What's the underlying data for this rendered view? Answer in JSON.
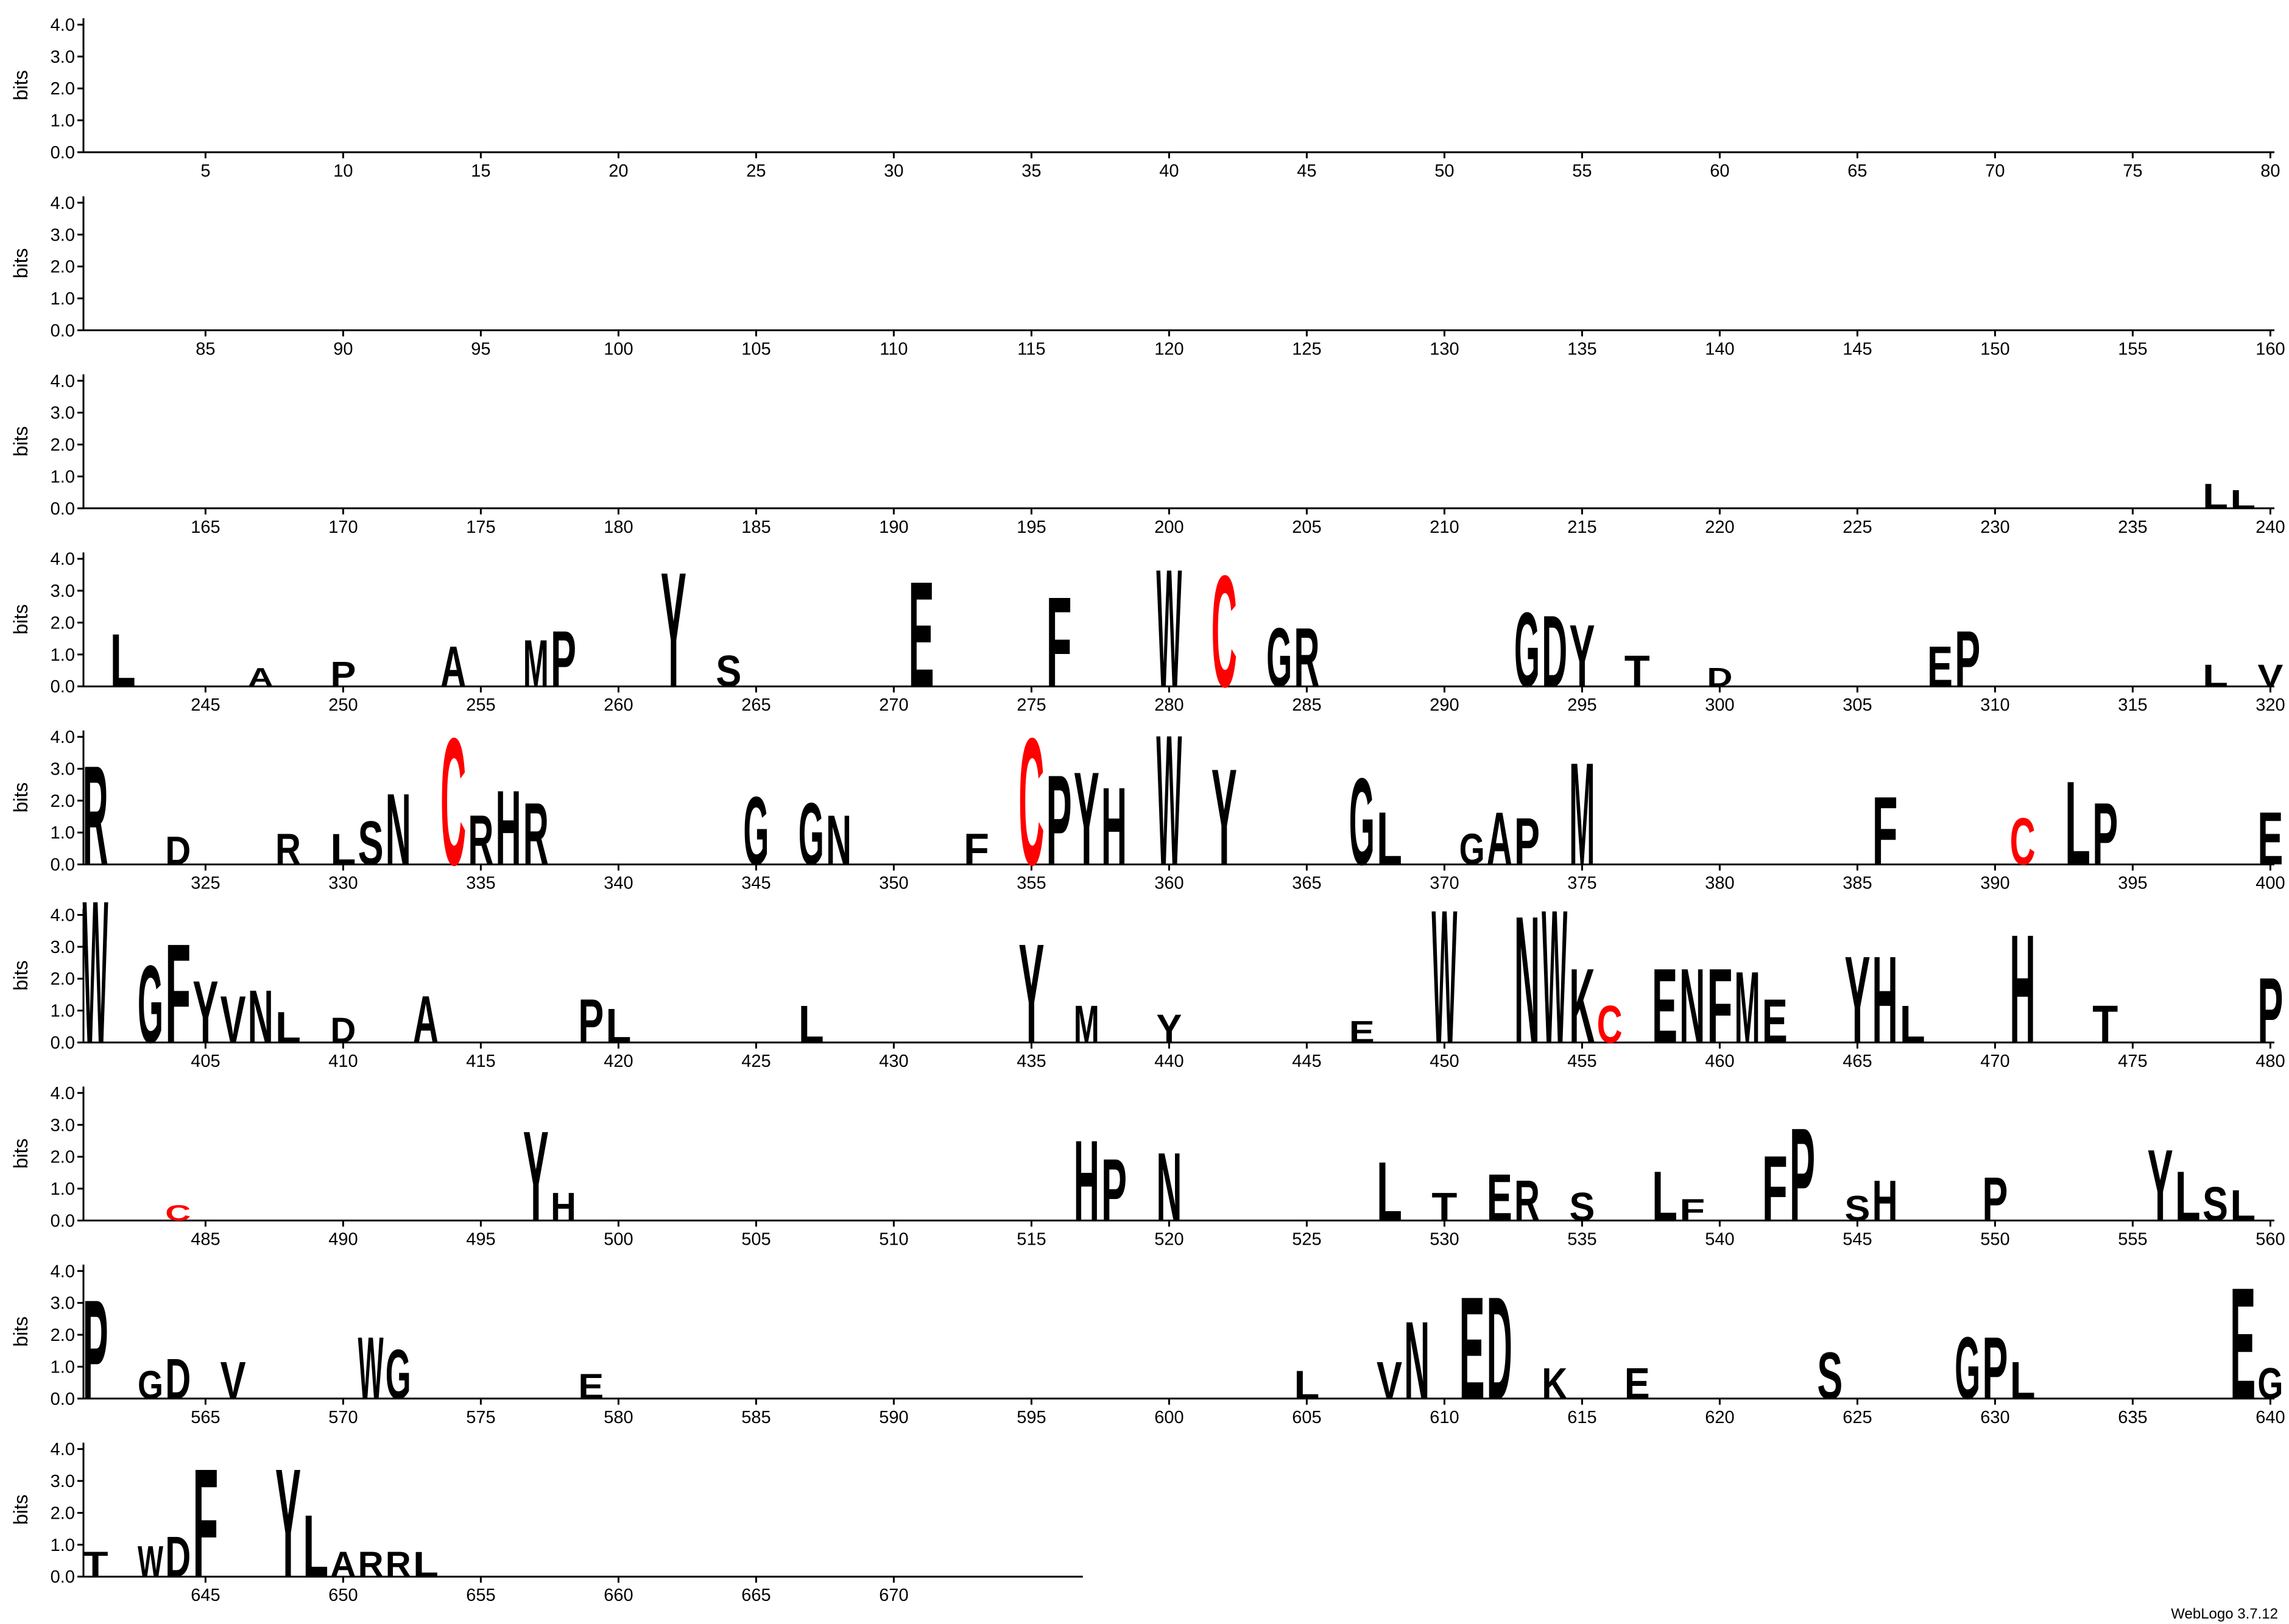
{
  "chart_data": {
    "type": "logo",
    "ylabel": "bits",
    "credit": "WebLogo 3.7.12",
    "ylim": [
      0,
      4.2
    ],
    "yticks": [
      {
        "value": 0,
        "label": "0.0"
      },
      {
        "value": 1,
        "label": "1.0"
      },
      {
        "value": 2,
        "label": "2.0"
      },
      {
        "value": 3,
        "label": "3.0"
      },
      {
        "value": 4,
        "label": "4.0"
      }
    ],
    "colors": {
      "default": "#000000",
      "C": "#ff0000"
    },
    "rows": [
      {
        "xlim": [
          1,
          80
        ],
        "xticks": [
          5,
          10,
          15,
          20,
          25,
          30,
          35,
          40,
          45,
          50,
          55,
          60,
          65,
          70,
          75,
          80
        ],
        "letters": []
      },
      {
        "xlim": [
          81,
          160
        ],
        "xticks": [
          85,
          90,
          95,
          100,
          105,
          110,
          115,
          120,
          125,
          130,
          135,
          140,
          145,
          150,
          155,
          160
        ],
        "letters": []
      },
      {
        "xlim": [
          161,
          240
        ],
        "xticks": [
          165,
          170,
          175,
          180,
          185,
          190,
          195,
          200,
          205,
          210,
          215,
          220,
          225,
          230,
          235,
          240
        ],
        "letters": [
          {
            "pos": 238,
            "letter": "L",
            "bits": 0.8
          },
          {
            "pos": 239,
            "letter": "L",
            "bits": 0.6
          }
        ]
      },
      {
        "xlim": [
          241,
          320
        ],
        "xticks": [
          245,
          250,
          255,
          260,
          265,
          270,
          275,
          280,
          285,
          290,
          295,
          300,
          305,
          310,
          315,
          320
        ],
        "letters": [
          {
            "pos": 242,
            "letter": "L",
            "bits": 1.7
          },
          {
            "pos": 247,
            "letter": "A",
            "bits": 0.6
          },
          {
            "pos": 250,
            "letter": "P",
            "bits": 0.8
          },
          {
            "pos": 254,
            "letter": "A",
            "bits": 1.3
          },
          {
            "pos": 257,
            "letter": "M",
            "bits": 1.5
          },
          {
            "pos": 258,
            "letter": "P",
            "bits": 1.8
          },
          {
            "pos": 262,
            "letter": "Y",
            "bits": 3.7
          },
          {
            "pos": 264,
            "letter": "S",
            "bits": 1.0
          },
          {
            "pos": 271,
            "letter": "E",
            "bits": 3.4
          },
          {
            "pos": 276,
            "letter": "F",
            "bits": 2.9
          },
          {
            "pos": 280,
            "letter": "W",
            "bits": 3.8
          },
          {
            "pos": 282,
            "letter": "C",
            "bits": 3.6
          },
          {
            "pos": 284,
            "letter": "G",
            "bits": 1.9
          },
          {
            "pos": 285,
            "letter": "R",
            "bits": 1.9
          },
          {
            "pos": 293,
            "letter": "G",
            "bits": 2.4
          },
          {
            "pos": 294,
            "letter": "D",
            "bits": 2.3
          },
          {
            "pos": 295,
            "letter": "Y",
            "bits": 2.0
          },
          {
            "pos": 297,
            "letter": "T",
            "bits": 1.0
          },
          {
            "pos": 300,
            "letter": "D",
            "bits": 0.6
          },
          {
            "pos": 308,
            "letter": "E",
            "bits": 1.3
          },
          {
            "pos": 309,
            "letter": "P",
            "bits": 1.8
          },
          {
            "pos": 318,
            "letter": "L",
            "bits": 0.7
          },
          {
            "pos": 320,
            "letter": "V",
            "bits": 0.7
          }
        ]
      },
      {
        "xlim": [
          321,
          400
        ],
        "xticks": [
          325,
          330,
          335,
          340,
          345,
          350,
          355,
          360,
          365,
          370,
          375,
          380,
          385,
          390,
          395,
          400
        ],
        "letters": [
          {
            "pos": 321,
            "letter": "R",
            "bits": 3.2
          },
          {
            "pos": 324,
            "letter": "D",
            "bits": 0.9
          },
          {
            "pos": 328,
            "letter": "R",
            "bits": 1.0
          },
          {
            "pos": 330,
            "letter": "L",
            "bits": 1.0
          },
          {
            "pos": 331,
            "letter": "S",
            "bits": 1.4
          },
          {
            "pos": 332,
            "letter": "N",
            "bits": 2.3
          },
          {
            "pos": 334,
            "letter": "C",
            "bits": 4.1
          },
          {
            "pos": 335,
            "letter": "R",
            "bits": 1.6
          },
          {
            "pos": 336,
            "letter": "H",
            "bits": 2.4
          },
          {
            "pos": 337,
            "letter": "R",
            "bits": 2.0
          },
          {
            "pos": 345,
            "letter": "G",
            "bits": 2.2
          },
          {
            "pos": 347,
            "letter": "G",
            "bits": 2.0
          },
          {
            "pos": 348,
            "letter": "N",
            "bits": 1.6
          },
          {
            "pos": 353,
            "letter": "F",
            "bits": 1.0
          },
          {
            "pos": 355,
            "letter": "C",
            "bits": 4.1
          },
          {
            "pos": 356,
            "letter": "P",
            "bits": 2.9
          },
          {
            "pos": 357,
            "letter": "Y",
            "bits": 3.0
          },
          {
            "pos": 358,
            "letter": "H",
            "bits": 2.5
          },
          {
            "pos": 360,
            "letter": "W",
            "bits": 4.2
          },
          {
            "pos": 362,
            "letter": "Y",
            "bits": 3.1
          },
          {
            "pos": 367,
            "letter": "G",
            "bits": 2.8
          },
          {
            "pos": 368,
            "letter": "L",
            "bits": 1.7
          },
          {
            "pos": 371,
            "letter": "G",
            "bits": 1.0
          },
          {
            "pos": 372,
            "letter": "A",
            "bits": 1.7
          },
          {
            "pos": 373,
            "letter": "P",
            "bits": 1.5
          },
          {
            "pos": 375,
            "letter": "M",
            "bits": 3.3
          },
          {
            "pos": 386,
            "letter": "F",
            "bits": 2.2
          },
          {
            "pos": 391,
            "letter": "C",
            "bits": 1.5
          },
          {
            "pos": 393,
            "letter": "L",
            "bits": 2.7
          },
          {
            "pos": 394,
            "letter": "P",
            "bits": 2.0
          },
          {
            "pos": 400,
            "letter": "E",
            "bits": 1.7
          }
        ]
      },
      {
        "xlim": [
          401,
          480
        ],
        "xticks": [
          405,
          410,
          415,
          420,
          425,
          430,
          435,
          440,
          445,
          450,
          455,
          460,
          465,
          470,
          475,
          480
        ],
        "letters": [
          {
            "pos": 401,
            "letter": "W",
            "bits": 4.6
          },
          {
            "pos": 403,
            "letter": "G",
            "bits": 2.5
          },
          {
            "pos": 404,
            "letter": "F",
            "bits": 3.2
          },
          {
            "pos": 405,
            "letter": "Y",
            "bits": 2.0
          },
          {
            "pos": 406,
            "letter": "V",
            "bits": 1.5
          },
          {
            "pos": 407,
            "letter": "N",
            "bits": 1.7
          },
          {
            "pos": 408,
            "letter": "L",
            "bits": 1.0
          },
          {
            "pos": 410,
            "letter": "D",
            "bits": 0.8
          },
          {
            "pos": 413,
            "letter": "A",
            "bits": 1.5
          },
          {
            "pos": 419,
            "letter": "P",
            "bits": 1.4
          },
          {
            "pos": 420,
            "letter": "L",
            "bits": 1.1
          },
          {
            "pos": 427,
            "letter": "L",
            "bits": 1.2
          },
          {
            "pos": 435,
            "letter": "Y",
            "bits": 3.2
          },
          {
            "pos": 437,
            "letter": "M",
            "bits": 1.2
          },
          {
            "pos": 440,
            "letter": "Y",
            "bits": 0.9
          },
          {
            "pos": 447,
            "letter": "E",
            "bits": 0.7
          },
          {
            "pos": 450,
            "letter": "W",
            "bits": 4.3
          },
          {
            "pos": 453,
            "letter": "N",
            "bits": 4.1
          },
          {
            "pos": 454,
            "letter": "W",
            "bits": 4.3
          },
          {
            "pos": 455,
            "letter": "K",
            "bits": 2.4
          },
          {
            "pos": 456,
            "letter": "C",
            "bits": 1.2
          },
          {
            "pos": 458,
            "letter": "E",
            "bits": 2.4
          },
          {
            "pos": 459,
            "letter": "N",
            "bits": 2.4
          },
          {
            "pos": 460,
            "letter": "F",
            "bits": 2.4
          },
          {
            "pos": 461,
            "letter": "M",
            "bits": 2.3
          },
          {
            "pos": 462,
            "letter": "E",
            "bits": 1.4
          },
          {
            "pos": 465,
            "letter": "Y",
            "bits": 2.8
          },
          {
            "pos": 466,
            "letter": "H",
            "bits": 2.8
          },
          {
            "pos": 467,
            "letter": "L",
            "bits": 1.2
          },
          {
            "pos": 471,
            "letter": "H",
            "bits": 3.5
          },
          {
            "pos": 474,
            "letter": "T",
            "bits": 1.2
          },
          {
            "pos": 480,
            "letter": "P",
            "bits": 2.1
          }
        ]
      },
      {
        "xlim": [
          481,
          560
        ],
        "xticks": [
          485,
          490,
          495,
          500,
          505,
          510,
          515,
          520,
          525,
          530,
          535,
          540,
          545,
          550,
          555,
          560
        ],
        "letters": [
          {
            "pos": 484,
            "letter": "C",
            "bits": 0.5
          },
          {
            "pos": 497,
            "letter": "Y",
            "bits": 2.9
          },
          {
            "pos": 498,
            "letter": "H",
            "bits": 0.9
          },
          {
            "pos": 517,
            "letter": "H",
            "bits": 2.6
          },
          {
            "pos": 518,
            "letter": "P",
            "bits": 2.0
          },
          {
            "pos": 520,
            "letter": "N",
            "bits": 2.2
          },
          {
            "pos": 528,
            "letter": "L",
            "bits": 1.9
          },
          {
            "pos": 530,
            "letter": "T",
            "bits": 0.9
          },
          {
            "pos": 532,
            "letter": "E",
            "bits": 1.5
          },
          {
            "pos": 533,
            "letter": "R",
            "bits": 1.3
          },
          {
            "pos": 535,
            "letter": "S",
            "bits": 0.9
          },
          {
            "pos": 538,
            "letter": "L",
            "bits": 1.6
          },
          {
            "pos": 539,
            "letter": "F",
            "bits": 0.7
          },
          {
            "pos": 542,
            "letter": "F",
            "bits": 2.1
          },
          {
            "pos": 543,
            "letter": "P",
            "bits": 3.0
          },
          {
            "pos": 545,
            "letter": "S",
            "bits": 0.8
          },
          {
            "pos": 546,
            "letter": "H",
            "bits": 1.3
          },
          {
            "pos": 550,
            "letter": "P",
            "bits": 1.4
          },
          {
            "pos": 556,
            "letter": "Y",
            "bits": 2.3
          },
          {
            "pos": 557,
            "letter": "L",
            "bits": 1.6
          },
          {
            "pos": 558,
            "letter": "S",
            "bits": 1.1
          },
          {
            "pos": 559,
            "letter": "L",
            "bits": 1.0
          }
        ]
      },
      {
        "xlim": [
          561,
          640
        ],
        "xticks": [
          565,
          570,
          575,
          580,
          585,
          590,
          595,
          600,
          605,
          610,
          615,
          620,
          625,
          630,
          635,
          640
        ],
        "letters": [
          {
            "pos": 561,
            "letter": "P",
            "bits": 3.2
          },
          {
            "pos": 563,
            "letter": "G",
            "bits": 0.9
          },
          {
            "pos": 564,
            "letter": "D",
            "bits": 1.3
          },
          {
            "pos": 566,
            "letter": "V",
            "bits": 1.2
          },
          {
            "pos": 571,
            "letter": "W",
            "bits": 2.0
          },
          {
            "pos": 572,
            "letter": "G",
            "bits": 1.6
          },
          {
            "pos": 579,
            "letter": "E",
            "bits": 0.8
          },
          {
            "pos": 605,
            "letter": "L",
            "bits": 0.9
          },
          {
            "pos": 608,
            "letter": "V",
            "bits": 1.2
          },
          {
            "pos": 609,
            "letter": "N",
            "bits": 2.5
          },
          {
            "pos": 611,
            "letter": "E",
            "bits": 3.3
          },
          {
            "pos": 612,
            "letter": "D",
            "bits": 3.3
          },
          {
            "pos": 614,
            "letter": "K",
            "bits": 1.0
          },
          {
            "pos": 617,
            "letter": "E",
            "bits": 1.0
          },
          {
            "pos": 624,
            "letter": "S",
            "bits": 1.5
          },
          {
            "pos": 629,
            "letter": "G",
            "bits": 2.0
          },
          {
            "pos": 630,
            "letter": "P",
            "bits": 2.0
          },
          {
            "pos": 631,
            "letter": "L",
            "bits": 1.2
          },
          {
            "pos": 639,
            "letter": "E",
            "bits": 3.6
          },
          {
            "pos": 640,
            "letter": "G",
            "bits": 1.0
          }
        ]
      },
      {
        "xlim": [
          641,
          672
        ],
        "xticks": [
          645,
          650,
          655,
          660,
          665,
          670
        ],
        "letters": [
          {
            "pos": 641,
            "letter": "T",
            "bits": 0.8
          },
          {
            "pos": 643,
            "letter": "W",
            "bits": 1.0
          },
          {
            "pos": 644,
            "letter": "D",
            "bits": 1.3
          },
          {
            "pos": 645,
            "letter": "F",
            "bits": 3.5
          },
          {
            "pos": 648,
            "letter": "Y",
            "bits": 3.5
          },
          {
            "pos": 649,
            "letter": "L",
            "bits": 2.0
          },
          {
            "pos": 650,
            "letter": "A",
            "bits": 0.8
          },
          {
            "pos": 651,
            "letter": "R",
            "bits": 0.8
          },
          {
            "pos": 652,
            "letter": "R",
            "bits": 0.8
          },
          {
            "pos": 653,
            "letter": "L",
            "bits": 0.8
          }
        ]
      }
    ]
  }
}
